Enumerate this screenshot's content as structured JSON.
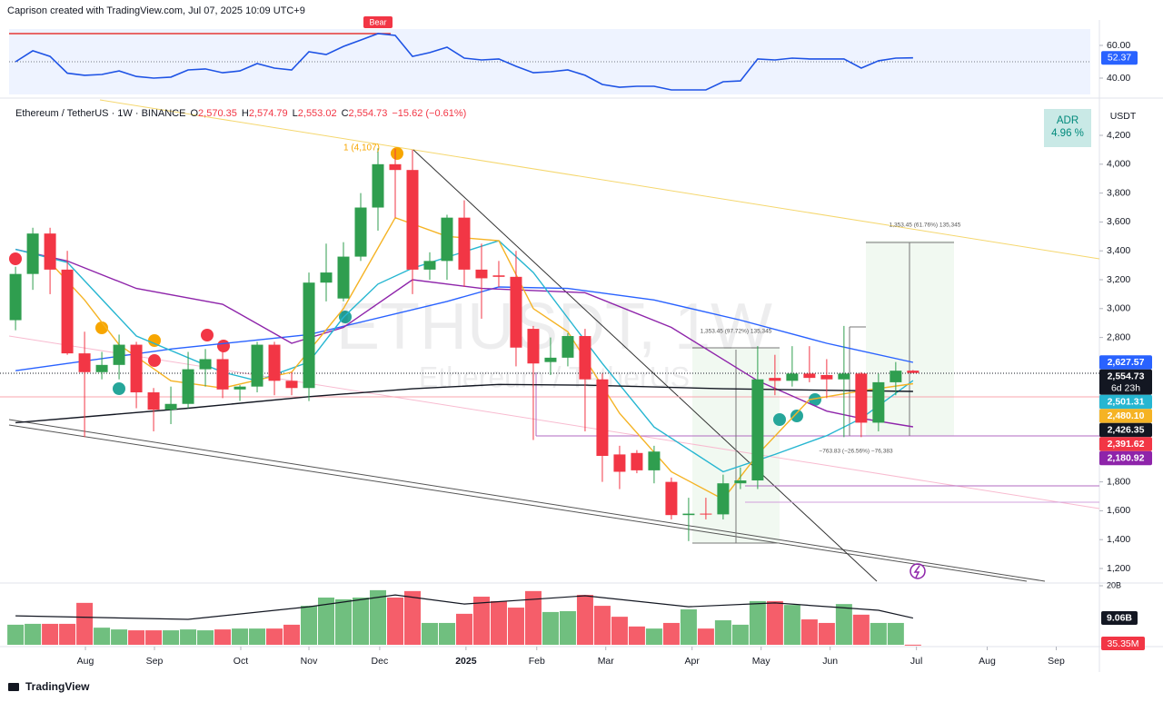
{
  "header": {
    "creator": "Caprison created with TradingView.com, Jul 07, 2025 10:09 UTC+9"
  },
  "footer": {
    "logo": "TradingView"
  },
  "chart_data": [
    {
      "type": "candlestick",
      "title": "Ethereum / TetherUS · 1W · BINANCE",
      "ohlc_legend": [
        {
          "prefix": "O",
          "text": "2,570.35"
        },
        {
          "prefix": "H",
          "text": "2,574.79"
        },
        {
          "prefix": "L",
          "text": "2,553.02"
        },
        {
          "prefix": "C",
          "text": "2,554.73"
        }
      ],
      "change": "−15.62 (−0.61%)",
      "currency": "USDT",
      "watermark": [
        "ETHUSDT, 1W",
        "Ethereum / TetherUS"
      ],
      "adr": {
        "label": "ADR",
        "value": "4.96 %"
      },
      "annotations": [
        {
          "text": "1 (4,107)",
          "color": "#f7a600"
        },
        {
          "text": "1,353.45 (61.76%) 135,345",
          "color": "#555"
        },
        {
          "text": "1,353.45 (97.72%) 135,345",
          "color": "#555"
        },
        {
          "text": "−763.83 (−26.56%) −76,383",
          "color": "#555"
        }
      ],
      "up_color": "#2f9e4f",
      "down_color": "#f23645",
      "x": [
        0,
        1,
        2,
        3,
        4,
        5,
        6,
        7,
        8,
        9,
        10,
        11,
        12,
        13,
        14,
        15,
        16,
        17,
        18,
        19,
        20,
        21,
        22,
        23,
        24,
        25,
        26,
        27,
        28,
        29,
        30,
        31,
        32,
        33,
        34,
        35,
        36,
        37,
        38,
        39,
        40,
        41,
        42,
        43,
        44,
        45,
        46,
        47,
        48,
        49,
        50,
        51,
        52
      ],
      "open": [
        2920,
        3240,
        3520,
        3270,
        2690,
        2560,
        2610,
        2750,
        2420,
        2300,
        2340,
        2580,
        2650,
        2440,
        2460,
        2750,
        2500,
        2450,
        3180,
        3070,
        3360,
        3700,
        4000,
        3960,
        3270,
        3330,
        3630,
        3270,
        3230,
        3220,
        2860,
        2630,
        2660,
        2810,
        2510,
        1990,
        2000,
        1880,
        1800,
        1570,
        1580,
        1575,
        1790,
        1810,
        2520,
        2500,
        2550,
        2540,
        2510,
        2550,
        2210,
        2490,
        2570.35
      ],
      "high": [
        3290,
        3560,
        3560,
        3400,
        2840,
        2700,
        2820,
        2770,
        2450,
        2460,
        2700,
        2720,
        2730,
        2470,
        2770,
        2770,
        2560,
        3250,
        3450,
        3460,
        3800,
        4110,
        4107,
        4100,
        3390,
        3650,
        3750,
        3450,
        3330,
        3400,
        2880,
        2800,
        2830,
        2860,
        2550,
        2050,
        2020,
        2050,
        1830,
        1690,
        1690,
        1850,
        1900,
        2740,
        2680,
        2740,
        2740,
        2650,
        2880,
        2560,
        2550,
        2630,
        2574.79
      ],
      "low": [
        2850,
        3130,
        3100,
        2680,
        2110,
        2510,
        2510,
        2310,
        2150,
        2200,
        2310,
        2460,
        2380,
        2360,
        2420,
        2400,
        2400,
        2360,
        3050,
        3050,
        3330,
        3540,
        3630,
        3100,
        3200,
        3200,
        3150,
        2930,
        3150,
        2600,
        2090,
        2540,
        2600,
        2150,
        1800,
        1750,
        1860,
        1790,
        1540,
        1390,
        1540,
        1540,
        1750,
        1750,
        2400,
        2460,
        2490,
        2380,
        2110,
        2110,
        2150,
        2400,
        2553.02
      ],
      "close": [
        3240,
        3520,
        3270,
        2690,
        2560,
        2610,
        2750,
        2420,
        2300,
        2340,
        2580,
        2650,
        2440,
        2460,
        2750,
        2500,
        2450,
        3180,
        3250,
        3360,
        3700,
        4000,
        3960,
        3270,
        3330,
        3630,
        3270,
        3210,
        3220,
        2730,
        2620,
        2660,
        2810,
        2510,
        1980,
        1870,
        1880,
        2010,
        1570,
        1580,
        1575,
        1790,
        1810,
        2510,
        2500,
        2550,
        2520,
        2510,
        2550,
        2210,
        2490,
        2570,
        2554.73
      ],
      "series": [
        {
          "color": "#2962ff",
          "x": [
            0,
            9,
            17,
            25,
            28,
            32,
            37,
            42,
            47,
            52
          ],
          "values": [
            2570,
            2720,
            2820,
            3050,
            3150,
            3140,
            3060,
            2920,
            2760,
            2627.57
          ]
        },
        {
          "color": "#8e24aa",
          "x": [
            0,
            3,
            7,
            12,
            16,
            19,
            23,
            27,
            33,
            38,
            43,
            47,
            49,
            52
          ],
          "values": [
            3410,
            3330,
            3140,
            3030,
            2760,
            2870,
            3200,
            3140,
            3110,
            2870,
            2500,
            2290,
            2240,
            2180.92
          ]
        },
        {
          "color": "#26b6d1",
          "x": [
            0,
            3,
            7,
            12,
            14,
            17,
            19,
            21,
            23,
            28,
            30,
            34,
            37,
            41,
            44,
            47,
            49,
            52
          ],
          "values": [
            3410,
            3320,
            2810,
            2560,
            2500,
            2630,
            2940,
            3170,
            3280,
            3470,
            3250,
            2620,
            2180,
            1870,
            1990,
            2120,
            2240,
            2501.31
          ]
        },
        {
          "color": "#f5b324",
          "x": [
            2,
            4,
            6,
            9,
            12,
            16,
            19,
            22,
            25,
            28,
            30,
            32,
            35,
            38,
            41,
            43,
            46,
            49,
            52
          ],
          "values": [
            3320,
            3060,
            2750,
            2500,
            2450,
            2560,
            3000,
            3630,
            3500,
            3470,
            3000,
            2840,
            2275,
            1870,
            1680,
            1990,
            2370,
            2430,
            2480.1
          ]
        },
        {
          "color": "#131722",
          "x": [
            0,
            10,
            17,
            23,
            28,
            33,
            41,
            52
          ],
          "values": [
            2210,
            2310,
            2390,
            2445,
            2475,
            2470,
            2445,
            2426.35
          ]
        }
      ],
      "price_labels": [
        {
          "value": 2627.57,
          "label": "2,627.57",
          "color": "#2962ff"
        },
        {
          "value": 2554.73,
          "label": "2,554.73",
          "color": "#131722",
          "countdown": "6d 23h"
        },
        {
          "value": 2501.31,
          "label": "2,501.31",
          "color": "#26b6d1"
        },
        {
          "value": 2480.1,
          "label": "2,480.10",
          "color": "#f5b324"
        },
        {
          "value": 2426.35,
          "label": "2,426.35",
          "color": "#131722"
        },
        {
          "value": 2391.62,
          "label": "2,391.62",
          "color": "#f23645"
        },
        {
          "value": 2180.92,
          "label": "2,180.92",
          "color": "#8e24aa"
        }
      ],
      "xlim": [
        -0.9,
        62.8
      ],
      "xticks": [
        {
          "value": 4.05,
          "label": "Aug"
        },
        {
          "value": 8.05,
          "label": "Sep"
        },
        {
          "value": 13.05,
          "label": "Oct"
        },
        {
          "value": 17,
          "label": "Nov"
        },
        {
          "value": 21.1,
          "label": "Dec"
        },
        {
          "value": 26.1,
          "label": "2025"
        },
        {
          "value": 30.2,
          "label": "Feb"
        },
        {
          "value": 34.2,
          "label": "Mar"
        },
        {
          "value": 39.2,
          "label": "Apr"
        },
        {
          "value": 43.2,
          "label": "May"
        },
        {
          "value": 47.2,
          "label": "Jun"
        },
        {
          "value": 52.2,
          "label": "Jul"
        },
        {
          "value": 56.3,
          "label": "Aug"
        },
        {
          "value": 60.3,
          "label": "Sep"
        }
      ],
      "ylim": [
        1112,
        4414
      ],
      "yticks": [
        {
          "value": 1200,
          "label": "1,200"
        },
        {
          "value": 1400,
          "label": "1,400"
        },
        {
          "value": 1600,
          "label": "1,600"
        },
        {
          "value": 1800,
          "label": "1,800"
        },
        {
          "value": 2800,
          "label": "2,800"
        },
        {
          "value": 3000,
          "label": "3,000"
        },
        {
          "value": 3200,
          "label": "3,200"
        },
        {
          "value": 3400,
          "label": "3,400"
        },
        {
          "value": 3600,
          "label": "3,600"
        },
        {
          "value": 3800,
          "label": "3,800"
        },
        {
          "value": 4000,
          "label": "4,000"
        },
        {
          "value": 4200,
          "label": "4,200"
        }
      ],
      "grid": false
    },
    {
      "type": "line",
      "color": "#1e53e5",
      "annotation": "Bear",
      "x": [
        0,
        1,
        2,
        3,
        4,
        5,
        6,
        7,
        8,
        9,
        10,
        11,
        12,
        13,
        14,
        15,
        16,
        17,
        18,
        19,
        20,
        21,
        22,
        23,
        24,
        25,
        26,
        27,
        28,
        29,
        30,
        31,
        32,
        33,
        34,
        35,
        36,
        37,
        38,
        39,
        40,
        41,
        42,
        43,
        44,
        45,
        46,
        47,
        48,
        49,
        50,
        51,
        52
      ],
      "values": [
        50,
        56.7,
        53.3,
        43,
        41.7,
        42.2,
        44.4,
        41,
        40,
        40.6,
        45,
        45.6,
        43.3,
        44.4,
        48.9,
        46.1,
        45,
        56.1,
        54.4,
        59.4,
        63.3,
        67.2,
        66.1,
        53.3,
        55.6,
        58.9,
        52.2,
        51.1,
        51.7,
        47.2,
        43.3,
        43.9,
        45,
        41.7,
        36.1,
        34.4,
        35,
        35,
        32.8,
        32.8,
        32.8,
        37.8,
        38.3,
        51.7,
        51.1,
        52.2,
        51.7,
        51.7,
        51.7,
        46.1,
        50.6,
        52.2,
        52.37
      ],
      "last_label": {
        "value": 52.37,
        "label": "52.37"
      },
      "ylim": [
        30,
        70
      ],
      "yticks": [
        {
          "value": 60,
          "label": "60.00"
        },
        {
          "value": 40,
          "label": "40.00"
        }
      ]
    },
    {
      "type": "bar",
      "up_color": "#4caf5f",
      "down_color": "#f23645",
      "x": [
        0,
        1,
        2,
        3,
        4,
        5,
        6,
        7,
        8,
        9,
        10,
        11,
        12,
        13,
        14,
        15,
        16,
        17,
        18,
        19,
        20,
        21,
        22,
        23,
        24,
        25,
        26,
        27,
        28,
        29,
        30,
        31,
        32,
        33,
        34,
        35,
        36,
        37,
        38,
        39,
        40,
        41,
        42,
        43,
        44,
        45,
        46,
        47,
        48,
        49,
        50,
        51,
        52
      ],
      "values": [
        6.8,
        7.1,
        7.1,
        7.1,
        14.2,
        5.8,
        5.2,
        4.9,
        4.9,
        4.9,
        5.2,
        4.9,
        5.2,
        5.5,
        5.5,
        5.5,
        6.8,
        13.2,
        16,
        15.4,
        16,
        18.5,
        16,
        18.2,
        7.4,
        7.4,
        10.5,
        16.3,
        14.8,
        12.6,
        18.2,
        11.1,
        11.4,
        16.9,
        13.2,
        9.5,
        6.2,
        5.5,
        7.4,
        12,
        5.5,
        8.3,
        6.8,
        14.8,
        14.8,
        13.5,
        8.6,
        7.4,
        13.8,
        10.2,
        7.4,
        7.4,
        0.03535
      ],
      "last_label": {
        "value": 0.03535,
        "label": "35.35M"
      },
      "ma": {
        "color": "#131722",
        "x": [
          0,
          10,
          17,
          22,
          26,
          33,
          39,
          44,
          50,
          52
        ],
        "values": [
          9.8,
          8.6,
          12.9,
          16.9,
          13.8,
          16.6,
          12.9,
          14.2,
          11.7,
          9.06
        ],
        "last_label": {
          "value": 9.06,
          "label": "9.06B"
        }
      },
      "ylim": [
        0,
        20
      ],
      "yticks": [
        {
          "value": 20,
          "label": "20B"
        }
      ]
    }
  ]
}
